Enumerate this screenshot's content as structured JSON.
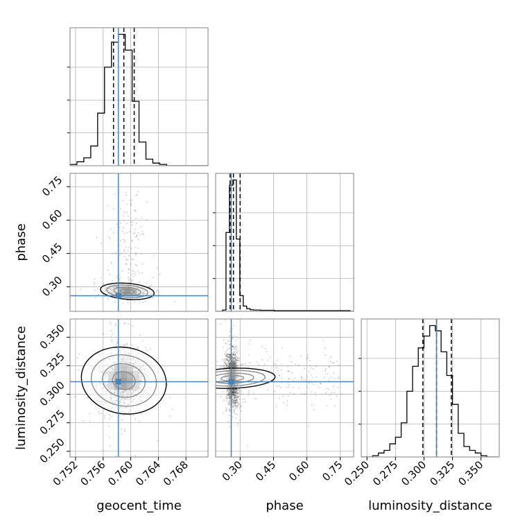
{
  "chart_data": {
    "type": "corner",
    "parameters": [
      "geocent_time",
      "phase",
      "luminosity_distance"
    ],
    "truth": {
      "geocent_time": 0.7582,
      "phase": 0.26,
      "luminosity_distance": 0.311
    },
    "quantiles": {
      "geocent_time": [
        0.7575,
        0.759,
        0.7605
      ],
      "phase": [
        0.255,
        0.27,
        0.3
      ],
      "luminosity_distance": [
        0.299,
        0.311,
        0.324
      ]
    },
    "ticks": {
      "geocent_time": {
        "values": [
          0.752,
          0.756,
          0.76,
          0.764,
          0.768
        ],
        "labels": [
          "0.752",
          "0.756",
          "0.760",
          "0.764",
          "0.768"
        ]
      },
      "phase": {
        "values": [
          0.3,
          0.45,
          0.6,
          0.75
        ],
        "labels": [
          "0.30",
          "0.45",
          "0.60",
          "0.75"
        ]
      },
      "luminosity_distance": {
        "values": [
          0.25,
          0.275,
          0.3,
          0.325,
          0.35
        ],
        "labels": [
          "0.250",
          "0.275",
          "0.300",
          "0.325",
          "0.350"
        ]
      }
    },
    "ranges": {
      "geocent_time": [
        0.7512,
        0.7712
      ],
      "phase": [
        0.19,
        0.81
      ],
      "luminosity_distance": [
        0.245,
        0.366
      ]
    },
    "histograms": {
      "geocent_time": {
        "x_start": 0.7512,
        "bin_width": 0.001,
        "counts": [
          0.01,
          0.03,
          0.06,
          0.15,
          0.4,
          0.75,
          0.94,
          1.0,
          0.88,
          0.49,
          0.18,
          0.05,
          0.02,
          0.01,
          0.0,
          0.0,
          0.0,
          0.0,
          0.0,
          0.0
        ],
        "ylim": [
          0,
          1.0
        ]
      },
      "phase": {
        "x_start": 0.19,
        "bin_width": 0.0155,
        "counts": [
          0.0,
          0.0,
          0.01,
          0.6,
          0.96,
          1.0,
          0.55,
          0.12,
          0.04,
          0.02,
          0.012,
          0.01,
          0.01,
          0.008,
          0.008,
          0.008,
          0.008,
          0.005,
          0.005,
          0.005,
          0.005,
          0.005,
          0.005,
          0.005,
          0.005,
          0.005,
          0.005,
          0.005,
          0.005,
          0.005,
          0.005,
          0.005,
          0.005,
          0.005,
          0.005,
          0.005,
          0.005,
          0.005,
          0.005,
          0.0
        ],
        "ylim": [
          0,
          1.0
        ]
      },
      "luminosity_distance": {
        "x_start": 0.245,
        "bin_width": 0.005,
        "counts": [
          0.0,
          0.0,
          0.01,
          0.03,
          0.05,
          0.1,
          0.15,
          0.26,
          0.5,
          0.69,
          0.83,
          0.92,
          1.0,
          0.96,
          0.8,
          0.62,
          0.4,
          0.18,
          0.08,
          0.05,
          0.03,
          0.01,
          0.0,
          0.0
        ],
        "ylim": [
          0,
          1.0
        ]
      }
    },
    "pairs": [
      {
        "x": "geocent_time",
        "y": "phase",
        "center": [
          0.7595,
          0.28
        ],
        "sd": [
          0.0013,
          0.012
        ],
        "rho": -0.25
      },
      {
        "x": "geocent_time",
        "y": "luminosity_distance",
        "center": [
          0.759,
          0.312
        ],
        "sd": [
          0.0016,
          0.0125
        ],
        "rho": 0.1
      },
      {
        "x": "phase",
        "y": "luminosity_distance",
        "center": [
          0.265,
          0.314
        ],
        "sd": [
          0.015,
          0.0125
        ],
        "rho": -0.15
      }
    ],
    "truth_color": "#4682b4",
    "grid": true
  }
}
